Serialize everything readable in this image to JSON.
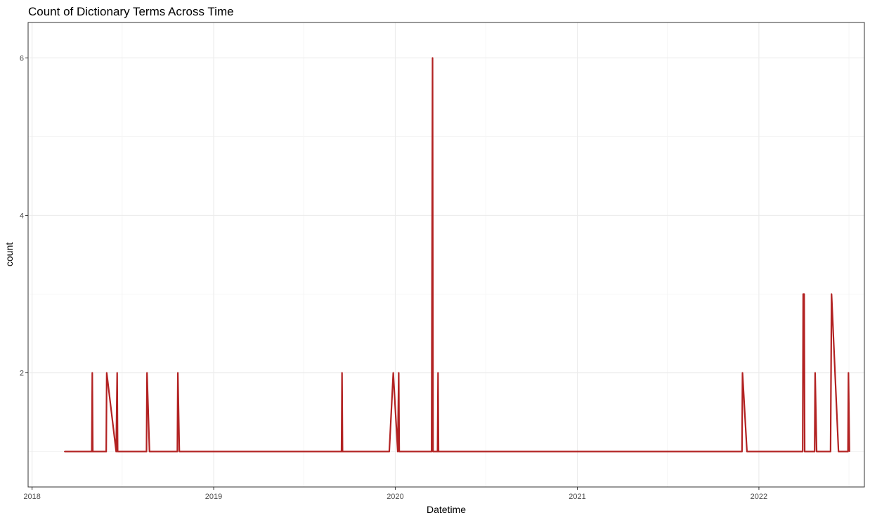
{
  "chart_data": {
    "type": "line",
    "title": "Count of Dictionary Terms Across Time",
    "xlabel": "Datetime",
    "ylabel": "count",
    "x_ticks": [
      "2018",
      "2019",
      "2020",
      "2021",
      "2022"
    ],
    "y_ticks": [
      "2",
      "4",
      "6"
    ],
    "xlim": [
      "2017-12-24",
      "2022-08-01"
    ],
    "ylim": [
      0.55,
      6.45
    ],
    "grid": true,
    "series": [
      {
        "color": "#B22222",
        "points": [
          [
            "2018-03-07",
            1
          ],
          [
            "2018-05-01",
            1
          ],
          [
            "2018-05-02",
            2
          ],
          [
            "2018-05-03",
            1
          ],
          [
            "2018-05-30",
            1
          ],
          [
            "2018-05-31",
            2
          ],
          [
            "2018-06-19",
            1
          ],
          [
            "2018-06-21",
            2
          ],
          [
            "2018-06-22",
            1
          ],
          [
            "2018-08-19",
            1
          ],
          [
            "2018-08-20",
            2
          ],
          [
            "2018-08-25",
            1
          ],
          [
            "2018-10-20",
            1
          ],
          [
            "2018-10-21",
            2
          ],
          [
            "2018-10-24",
            1
          ],
          [
            "2019-09-15",
            1
          ],
          [
            "2019-09-16",
            2
          ],
          [
            "2019-09-17",
            1
          ],
          [
            "2019-12-20",
            1
          ],
          [
            "2019-12-28",
            2
          ],
          [
            "2020-01-06",
            1
          ],
          [
            "2020-01-08",
            2
          ],
          [
            "2020-01-09",
            1
          ],
          [
            "2020-03-14",
            1
          ],
          [
            "2020-03-16",
            6
          ],
          [
            "2020-03-17",
            1
          ],
          [
            "2020-03-26",
            1
          ],
          [
            "2020-03-27",
            2
          ],
          [
            "2020-03-28",
            1
          ],
          [
            "2021-11-28",
            1
          ],
          [
            "2021-11-29",
            2
          ],
          [
            "2021-12-08",
            1
          ],
          [
            "2022-03-30",
            1
          ],
          [
            "2022-03-31",
            3
          ],
          [
            "2022-04-02",
            3
          ],
          [
            "2022-04-03",
            1
          ],
          [
            "2022-04-23",
            1
          ],
          [
            "2022-04-24",
            2
          ],
          [
            "2022-04-27",
            1
          ],
          [
            "2022-05-25",
            1
          ],
          [
            "2022-05-27",
            3
          ],
          [
            "2022-06-10",
            1
          ],
          [
            "2022-06-29",
            1
          ],
          [
            "2022-06-30",
            2
          ],
          [
            "2022-07-02",
            1
          ]
        ]
      }
    ]
  }
}
